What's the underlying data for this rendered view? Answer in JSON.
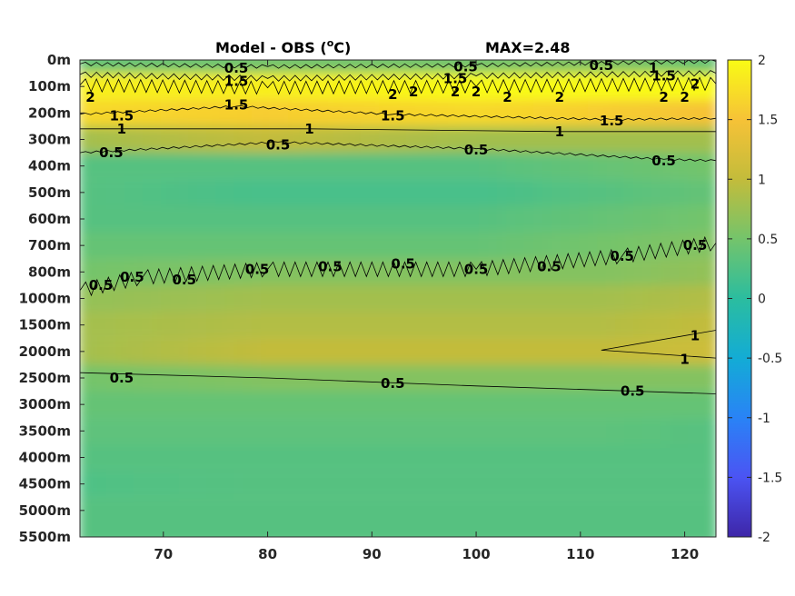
{
  "chart_data": {
    "type": "heatmap",
    "title": "Model - OBS (",
    "title_super": "o",
    "title_unit": "C)",
    "subtitle": "MAX=2.48",
    "colormap": "parula",
    "colors": [
      "#3e26a8",
      "#4b54f3",
      "#2983f6",
      "#13acd5",
      "#2bbd9f",
      "#74c46b",
      "#c3bc3b",
      "#f6c237",
      "#f9fb15"
    ],
    "y_tick_labels": [
      "0m",
      "100m",
      "200m",
      "300m",
      "400m",
      "500m",
      "600m",
      "700m",
      "800m",
      "1000m",
      "1500m",
      "2000m",
      "2500m",
      "3000m",
      "3500m",
      "4000m",
      "4500m",
      "5000m",
      "5500m"
    ],
    "x_ticks": [
      70,
      80,
      90,
      100,
      110,
      120
    ],
    "x_tick_labels": [
      "70",
      "80",
      "90",
      "100",
      "110",
      "120"
    ],
    "xlim": [
      62,
      123
    ],
    "colorbar": {
      "ticks": [
        2,
        1.5,
        1,
        0.5,
        0,
        -0.5,
        -1,
        -1.5,
        -2
      ],
      "tick_labels": [
        "2",
        "1.5",
        "1",
        "0.5",
        "0",
        "-0.5",
        "-1",
        "-1.5",
        "-2"
      ],
      "clim": [
        -2,
        2
      ]
    },
    "depth_profile": {
      "depth_labels": [
        "0m",
        "100m",
        "200m",
        "300m",
        "400m",
        "500m",
        "600m",
        "700m",
        "800m",
        "1000m",
        "1500m",
        "2000m",
        "2500m",
        "3000m",
        "3500m",
        "4000m",
        "4500m",
        "5000m",
        "5500m"
      ],
      "x": [
        62,
        80,
        100,
        112,
        123
      ],
      "values": [
        [
          0.4,
          0.5,
          0.5,
          0.6,
          0.4
        ],
        [
          1.9,
          1.9,
          2.0,
          2.0,
          2.0
        ],
        [
          1.7,
          1.6,
          1.7,
          1.6,
          1.5
        ],
        [
          0.8,
          1.0,
          0.8,
          0.8,
          0.8
        ],
        [
          0.3,
          0.3,
          0.3,
          0.4,
          0.5
        ],
        [
          0.3,
          0.2,
          0.2,
          0.3,
          0.4
        ],
        [
          0.3,
          0.3,
          0.3,
          0.4,
          0.5
        ],
        [
          0.4,
          0.4,
          0.4,
          0.5,
          0.6
        ],
        [
          0.5,
          0.6,
          0.6,
          0.6,
          0.7
        ],
        [
          0.7,
          0.8,
          0.8,
          0.8,
          0.9
        ],
        [
          0.8,
          0.9,
          0.9,
          0.9,
          1.0
        ],
        [
          0.8,
          1.0,
          1.0,
          1.0,
          1.1
        ],
        [
          0.5,
          0.6,
          0.6,
          0.6,
          0.6
        ],
        [
          0.4,
          0.4,
          0.4,
          0.4,
          0.4
        ],
        [
          0.35,
          0.35,
          0.35,
          0.35,
          0.3
        ],
        [
          0.3,
          0.3,
          0.3,
          0.3,
          0.3
        ],
        [
          0.25,
          0.3,
          0.3,
          0.3,
          0.3
        ],
        [
          0.3,
          0.3,
          0.3,
          0.3,
          0.3
        ],
        [
          0.3,
          0.3,
          0.3,
          0.3,
          0.3
        ]
      ]
    },
    "contour_labels": [
      {
        "text": "0.5",
        "x": 77,
        "depth_index": 0.3
      },
      {
        "text": "0.5",
        "x": 99,
        "depth_index": 0.25
      },
      {
        "text": "0.5",
        "x": 112,
        "depth_index": 0.2
      },
      {
        "text": "2",
        "x": 63,
        "depth_index": 1.4
      },
      {
        "text": "1.5",
        "x": 77,
        "depth_index": 0.8
      },
      {
        "text": "1.5",
        "x": 98,
        "depth_index": 0.7
      },
      {
        "text": "1.5",
        "x": 118,
        "depth_index": 0.6
      },
      {
        "text": "1",
        "x": 117,
        "depth_index": 0.3
      },
      {
        "text": "2",
        "x": 121,
        "depth_index": 0.9
      },
      {
        "text": "2",
        "x": 92,
        "depth_index": 1.3
      },
      {
        "text": "2",
        "x": 94,
        "depth_index": 1.2
      },
      {
        "text": "2",
        "x": 98,
        "depth_index": 1.2
      },
      {
        "text": "2",
        "x": 100,
        "depth_index": 1.2
      },
      {
        "text": "2",
        "x": 103,
        "depth_index": 1.4
      },
      {
        "text": "2",
        "x": 108,
        "depth_index": 1.4
      },
      {
        "text": "2",
        "x": 118,
        "depth_index": 1.4
      },
      {
        "text": "2",
        "x": 120,
        "depth_index": 1.4
      },
      {
        "text": "1.5",
        "x": 66,
        "depth_index": 2.1
      },
      {
        "text": "1.5",
        "x": 77,
        "depth_index": 1.7
      },
      {
        "text": "1.5",
        "x": 92,
        "depth_index": 2.1
      },
      {
        "text": "1.5",
        "x": 113,
        "depth_index": 2.3
      },
      {
        "text": "1",
        "x": 66,
        "depth_index": 2.6
      },
      {
        "text": "1",
        "x": 84,
        "depth_index": 2.6
      },
      {
        "text": "1",
        "x": 108,
        "depth_index": 2.7
      },
      {
        "text": "0.5",
        "x": 65,
        "depth_index": 3.5
      },
      {
        "text": "0.5",
        "x": 81,
        "depth_index": 3.2
      },
      {
        "text": "0.5",
        "x": 100,
        "depth_index": 3.4
      },
      {
        "text": "0.5",
        "x": 118,
        "depth_index": 3.8
      },
      {
        "text": "0.5",
        "x": 64,
        "depth_index": 8.5
      },
      {
        "text": "0.5",
        "x": 67,
        "depth_index": 8.2
      },
      {
        "text": "0.5",
        "x": 72,
        "depth_index": 8.3
      },
      {
        "text": "0.5",
        "x": 79,
        "depth_index": 7.9
      },
      {
        "text": "0.5",
        "x": 86,
        "depth_index": 7.8
      },
      {
        "text": "0.5",
        "x": 93,
        "depth_index": 7.7
      },
      {
        "text": "0.5",
        "x": 100,
        "depth_index": 7.9
      },
      {
        "text": "0.5",
        "x": 107,
        "depth_index": 7.8
      },
      {
        "text": "0.5",
        "x": 114,
        "depth_index": 7.4
      },
      {
        "text": "0.5",
        "x": 121,
        "depth_index": 7.0
      },
      {
        "text": "1",
        "x": 121,
        "depth_index": 10.4
      },
      {
        "text": "1",
        "x": 120,
        "depth_index": 11.3
      },
      {
        "text": "0.5",
        "x": 66,
        "depth_index": 12.0
      },
      {
        "text": "0.5",
        "x": 92,
        "depth_index": 12.2
      },
      {
        "text": "0.5",
        "x": 115,
        "depth_index": 12.5
      }
    ]
  }
}
